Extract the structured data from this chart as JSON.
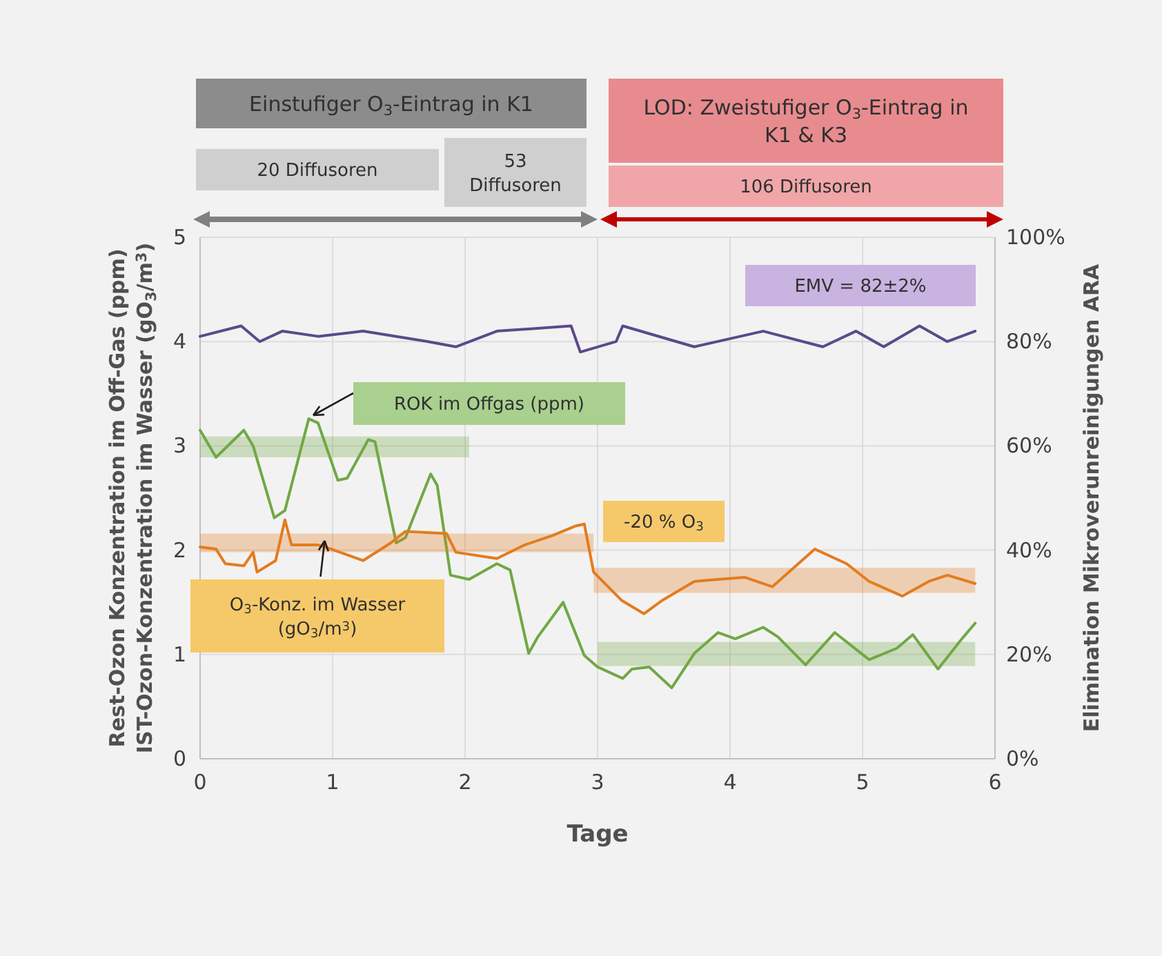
{
  "chart_data": {
    "type": "line",
    "xlabel": "Tage",
    "ylabel": "Rest-Ozon Konzentration im Off-Gas (ppm)\nIST-Ozon-Konzentration im Wasser (gO$_{3}$/m$^{3}$)",
    "y2label": "Elimination Mikroverunreinigungen ARA",
    "xlim": [
      0,
      6
    ],
    "xticks": [
      0,
      1,
      2,
      3,
      4,
      5,
      6
    ],
    "ylim": [
      0,
      5
    ],
    "yticks": [
      0,
      1,
      2,
      3,
      4,
      5
    ],
    "y2lim": [
      0,
      100
    ],
    "y2ticks": [
      {
        "value": 0,
        "label": "0%"
      },
      {
        "value": 20,
        "label": "20%"
      },
      {
        "value": 40,
        "label": "40%"
      },
      {
        "value": 60,
        "label": "60%"
      },
      {
        "value": 80,
        "label": "80%"
      },
      {
        "value": 100,
        "label": "100%"
      }
    ],
    "grid": true,
    "series": [
      {
        "color": "#70a845",
        "x": [
          0,
          0.12,
          0.33,
          0.4,
          0.56,
          0.64,
          0.82,
          0.89,
          1.04,
          1.11,
          1.27,
          1.32,
          1.48,
          1.55,
          1.74,
          1.79,
          1.89,
          2.03,
          2.24,
          2.34,
          2.48,
          2.55,
          2.74,
          2.9,
          3.0,
          3.19,
          3.26,
          3.39,
          3.56,
          3.73,
          3.91,
          4.04,
          4.25,
          4.36,
          4.57,
          4.79,
          5.05,
          5.26,
          5.38,
          5.57,
          5.75,
          5.85
        ],
        "values": [
          3.15,
          2.89,
          3.15,
          3.0,
          2.31,
          2.38,
          3.26,
          3.22,
          2.67,
          2.69,
          3.06,
          3.04,
          2.07,
          2.12,
          2.73,
          2.62,
          1.76,
          1.72,
          1.87,
          1.81,
          1.01,
          1.17,
          1.5,
          0.99,
          0.88,
          0.77,
          0.86,
          0.88,
          0.68,
          1.01,
          1.21,
          1.15,
          1.26,
          1.17,
          0.9,
          1.21,
          0.95,
          1.06,
          1.19,
          0.86,
          1.15,
          1.3
        ],
        "lower": [
          2.89,
          2.89,
          2.89,
          2.89,
          2.89,
          2.89,
          2.89,
          2.89,
          2.89,
          2.89,
          2.89,
          2.89,
          2.89,
          2.89,
          2.89,
          2.89,
          2.89,
          2.89,
          null,
          null,
          null,
          null,
          null,
          null,
          0.89,
          0.89,
          0.89,
          0.89,
          0.89,
          0.89,
          0.89,
          0.89,
          0.89,
          0.89,
          0.89,
          0.89,
          0.89,
          0.89,
          0.89,
          0.89,
          0.89,
          0.89
        ],
        "upper": [
          3.09,
          3.09,
          3.09,
          3.09,
          3.09,
          3.09,
          3.09,
          3.09,
          3.09,
          3.09,
          3.09,
          3.09,
          3.09,
          3.09,
          3.09,
          3.09,
          3.09,
          3.09,
          null,
          null,
          null,
          null,
          null,
          null,
          1.12,
          1.12,
          1.12,
          1.12,
          1.12,
          1.12,
          1.12,
          1.12,
          1.12,
          1.12,
          1.12,
          1.12,
          1.12,
          1.12,
          1.12,
          1.12,
          1.12,
          1.12
        ]
      },
      {
        "color": "#e37c1e",
        "x": [
          0,
          0.12,
          0.19,
          0.33,
          0.4,
          0.43,
          0.57,
          0.64,
          0.69,
          0.89,
          0.99,
          1.23,
          1.44,
          1.55,
          1.86,
          1.93,
          2.24,
          2.45,
          2.66,
          2.83,
          2.9,
          2.97,
          3.18,
          3.35,
          3.49,
          3.73,
          3.91,
          4.11,
          4.32,
          4.64,
          4.88,
          5.05,
          5.3,
          5.5,
          5.64,
          5.85
        ],
        "values": [
          2.03,
          2.01,
          1.87,
          1.85,
          1.98,
          1.79,
          1.9,
          2.29,
          2.05,
          2.05,
          2.01,
          1.9,
          2.07,
          2.18,
          2.16,
          1.98,
          1.92,
          2.05,
          2.14,
          2.23,
          2.25,
          1.79,
          1.52,
          1.39,
          1.52,
          1.7,
          1.72,
          1.74,
          1.65,
          2.01,
          1.87,
          1.7,
          1.56,
          1.7,
          1.76,
          1.68
        ],
        "lower": [
          1.98,
          1.98,
          1.98,
          1.98,
          1.98,
          1.98,
          1.98,
          1.98,
          1.98,
          1.98,
          1.98,
          1.98,
          1.98,
          1.98,
          1.98,
          1.98,
          1.98,
          1.98,
          1.98,
          1.98,
          1.98,
          1.59,
          1.59,
          1.59,
          1.59,
          1.59,
          1.59,
          1.59,
          1.59,
          1.59,
          1.59,
          1.59,
          1.59,
          1.59,
          1.59,
          1.59
        ],
        "upper": [
          2.16,
          2.16,
          2.16,
          2.16,
          2.16,
          2.16,
          2.16,
          2.16,
          2.16,
          2.16,
          2.16,
          2.16,
          2.16,
          2.16,
          2.16,
          2.16,
          2.16,
          2.16,
          2.16,
          2.16,
          2.16,
          1.83,
          1.83,
          1.83,
          1.83,
          1.83,
          1.83,
          1.83,
          1.83,
          1.83,
          1.83,
          1.83,
          1.83,
          1.83,
          1.83,
          1.83
        ]
      },
      {
        "color": "#5b4a8a",
        "axis": "y2",
        "x": [
          0,
          0.31,
          0.45,
          0.62,
          0.89,
          1.23,
          1.72,
          1.93,
          2.24,
          2.8,
          2.87,
          3.14,
          3.19,
          3.73,
          4.25,
          4.7,
          4.95,
          5.16,
          5.43,
          5.64,
          5.85
        ],
        "values": [
          81,
          83,
          80,
          82,
          81,
          82,
          80,
          79,
          82,
          83,
          78,
          80,
          83,
          79,
          82,
          79,
          82,
          79,
          83,
          80,
          82
        ]
      }
    ],
    "annotations": [
      "Einstufiger O$_{3}$-Eintrag in K1",
      "20 Diffusoren",
      "53 Diffusoren",
      "LOD: Zweistufiger O$_{3}$-Eintrag in K1 & K3",
      "106 Diffusoren",
      "ROK im Offgas (ppm)",
      {
        "text": "O$_{3}$-Konz. im Wasser (gO$_{3}$/m$^{3}$)",
        "x": 0.94,
        "y": 2.09
      },
      "EMV = 82±2%",
      "-20 % O$_{3}$"
    ]
  }
}
